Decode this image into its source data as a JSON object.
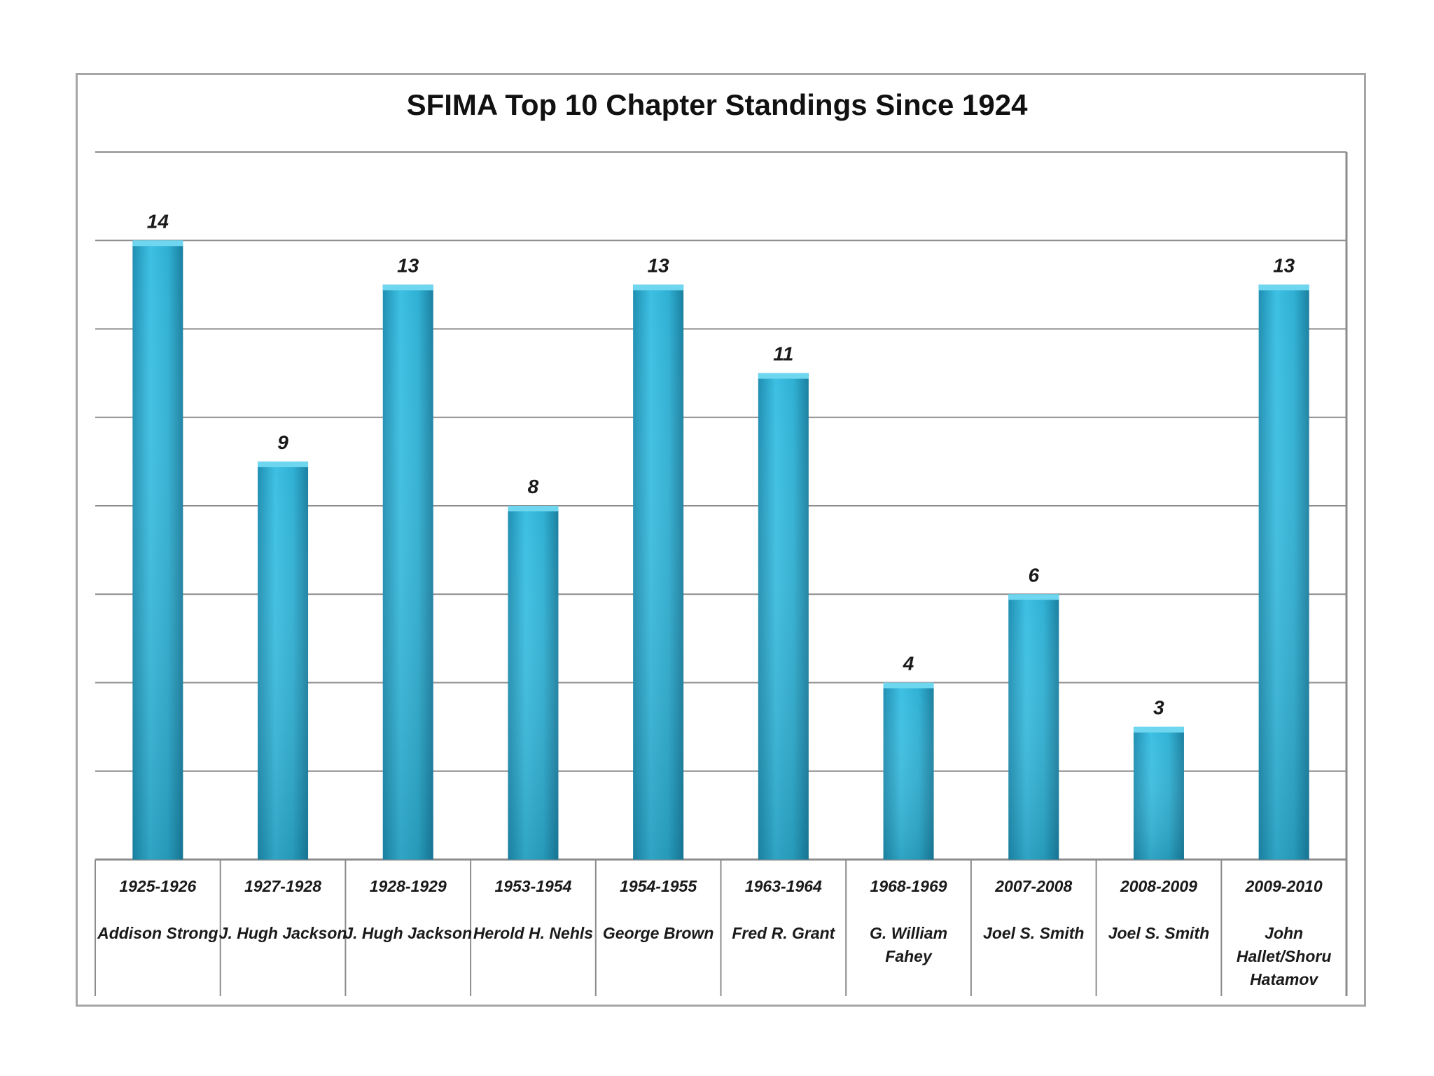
{
  "chart_data": {
    "type": "bar",
    "title": "SFIMA Top 10 Chapter Standings Since 1924",
    "xlabel": "",
    "ylabel": "",
    "ylim": [
      0,
      16
    ],
    "grid": true,
    "legend": "none",
    "categories": [
      {
        "year": "1925-1926",
        "name_lines": [
          "Addison Strong"
        ]
      },
      {
        "year": "1927-1928",
        "name_lines": [
          "J. Hugh Jackson"
        ]
      },
      {
        "year": "1928-1929",
        "name_lines": [
          "J. Hugh Jackson"
        ]
      },
      {
        "year": "1953-1954",
        "name_lines": [
          "Herold H. Nehls"
        ]
      },
      {
        "year": "1954-1955",
        "name_lines": [
          "George Brown"
        ]
      },
      {
        "year": "1963-1964",
        "name_lines": [
          "Fred R. Grant"
        ]
      },
      {
        "year": "1968-1969",
        "name_lines": [
          "G. William",
          "Fahey"
        ]
      },
      {
        "year": "2007-2008",
        "name_lines": [
          "Joel S. Smith"
        ]
      },
      {
        "year": "2008-2009",
        "name_lines": [
          "Joel S. Smith"
        ]
      },
      {
        "year": "2009-2010",
        "name_lines": [
          "John",
          "Hallet/Shoru",
          "Hatamov"
        ]
      }
    ],
    "values": [
      14,
      9,
      13,
      8,
      13,
      11,
      4,
      6,
      3,
      13
    ],
    "bar_color": "#2fb0d3"
  }
}
